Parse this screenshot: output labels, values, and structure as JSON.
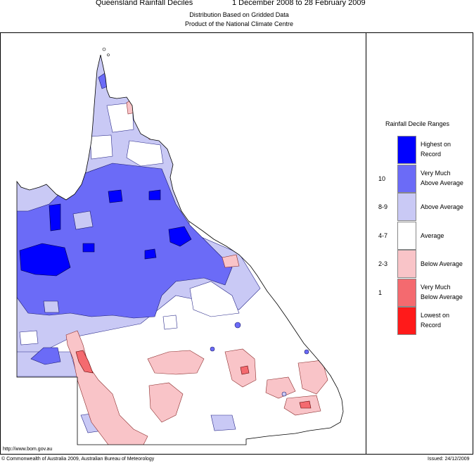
{
  "header": {
    "title_left": "Queensland Rainfall Deciles",
    "title_right": "1 December 2008 to 28 February 2009",
    "subtitle1": "Distribution Based on Gridded Data",
    "subtitle2": "Product of the National Climate Centre"
  },
  "legend": {
    "title": "Rainfall Decile Ranges",
    "items": [
      {
        "label_line1": "Highest on",
        "label_line2": "Record",
        "range": "",
        "color": "#0000ff"
      },
      {
        "label_line1": "Very Much",
        "label_line2": "Above Average",
        "range": "10",
        "color": "#6b6bf7"
      },
      {
        "label_line1": "Above Average",
        "label_line2": "",
        "range": "8-9",
        "color": "#c9c9f5"
      },
      {
        "label_line1": "Average",
        "label_line2": "",
        "range": "4-7",
        "color": "#ffffff"
      },
      {
        "label_line1": "Below Average",
        "label_line2": "",
        "range": "2-3",
        "color": "#f9c4c8"
      },
      {
        "label_line1": "Very Much",
        "label_line2": "Below Average",
        "range": "1",
        "color": "#f46a6f"
      },
      {
        "label_line1": "Lowest on",
        "label_line2": "Record",
        "range": "",
        "color": "#ff1a1a"
      }
    ]
  },
  "footer": {
    "url": "http://www.bom.gov.au",
    "copyright": "© Commonwealth of Australia 2009, Australian Bureau of Meteorology",
    "issued": "Issued: 24/12/2009"
  },
  "colors": {
    "highest": "#0000ff",
    "very_much_above": "#6b6bf7",
    "above": "#c9c9f5",
    "average": "#ffffff",
    "below": "#f9c4c8",
    "very_much_below": "#f46a6f"
  }
}
